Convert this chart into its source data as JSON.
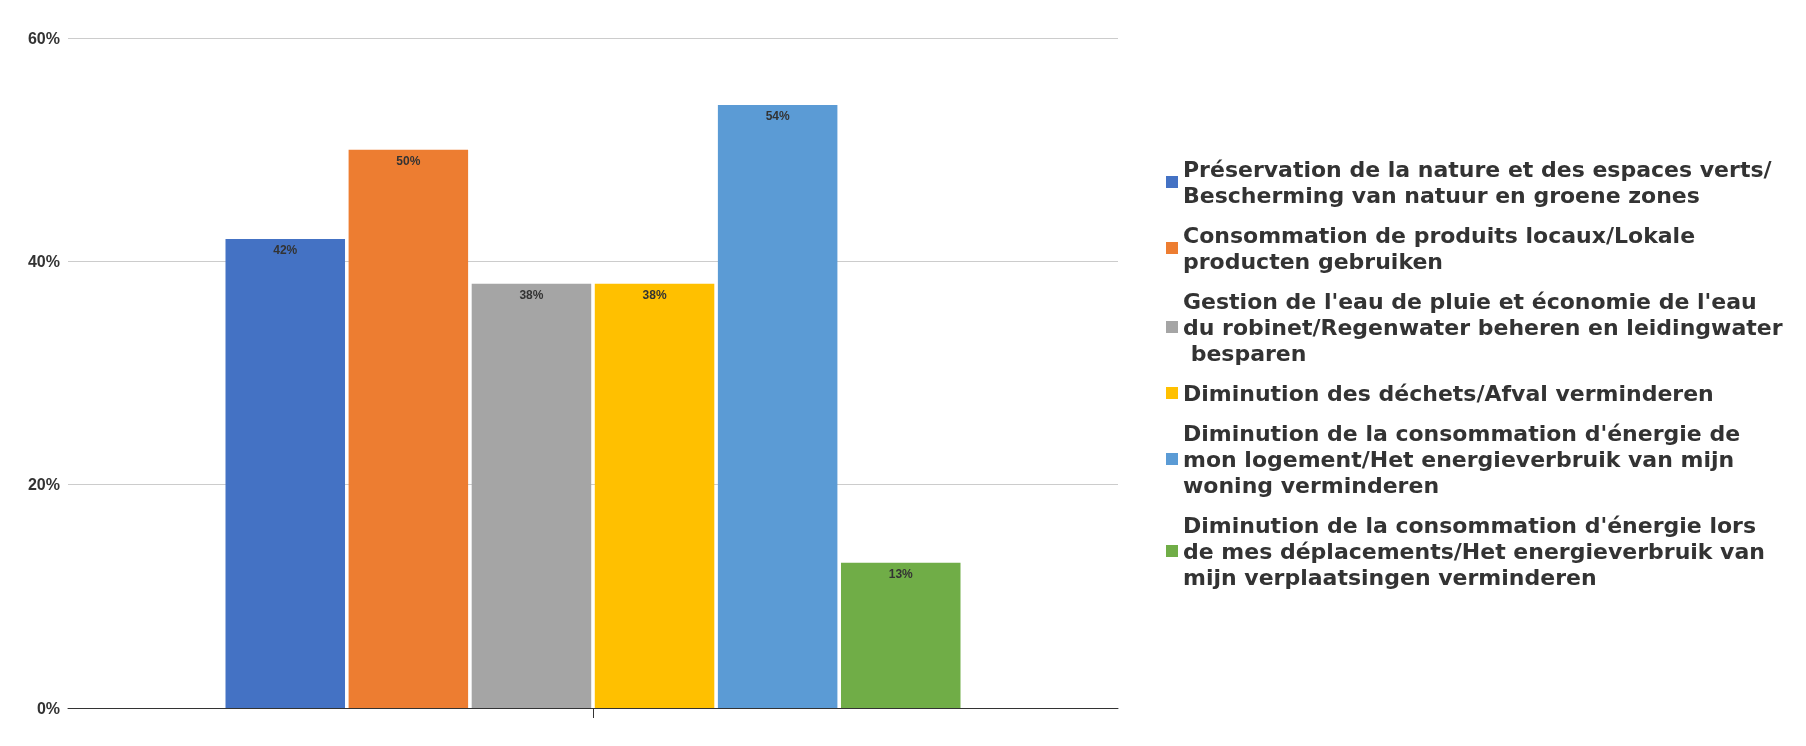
{
  "chart_data": {
    "type": "bar",
    "categories": [
      null
    ],
    "series": [
      {
        "name": "Préservation de la nature et des espaces verts/Bescherming van natuur en groene zones",
        "color": "#4472c4",
        "values": [
          42
        ],
        "value_labels": [
          "42%"
        ]
      },
      {
        "name": "Consommation de produits locaux/Lokale producten gebruiken",
        "color": "#ed7d31",
        "values": [
          50
        ],
        "value_labels": [
          "50%"
        ]
      },
      {
        "name": "Gestion de l'eau de pluie et économie de l'eau du robinet/Regenwater beheren en leidingwater besparen",
        "color": "#a5a5a5",
        "values": [
          38
        ],
        "value_labels": [
          "38%"
        ]
      },
      {
        "name": "Diminution des déchets/Afval verminderen",
        "color": "#ffc000",
        "values": [
          38
        ],
        "value_labels": [
          "38%"
        ]
      },
      {
        "name": "Diminution de la consommation d'énergie de mon logement/Het energieverbruik van mijn woning verminderen",
        "color": "#5b9bd5",
        "values": [
          54
        ],
        "value_labels": [
          "54%"
        ]
      },
      {
        "name": "Diminution de la consommation d'énergie lors de mes déplacements/Het energieverbruik van mijn verplaatsingen verminderen",
        "color": "#70ad47",
        "values": [
          13
        ],
        "value_labels": [
          "13%"
        ]
      }
    ],
    "ylim": [
      0,
      60
    ],
    "yticks": [
      {
        "value": 0,
        "label": "0%"
      },
      {
        "value": 20,
        "label": "20%"
      },
      {
        "value": 40,
        "label": "40%"
      },
      {
        "value": 60,
        "label": "60%"
      }
    ],
    "grid": true,
    "legend": "right"
  }
}
